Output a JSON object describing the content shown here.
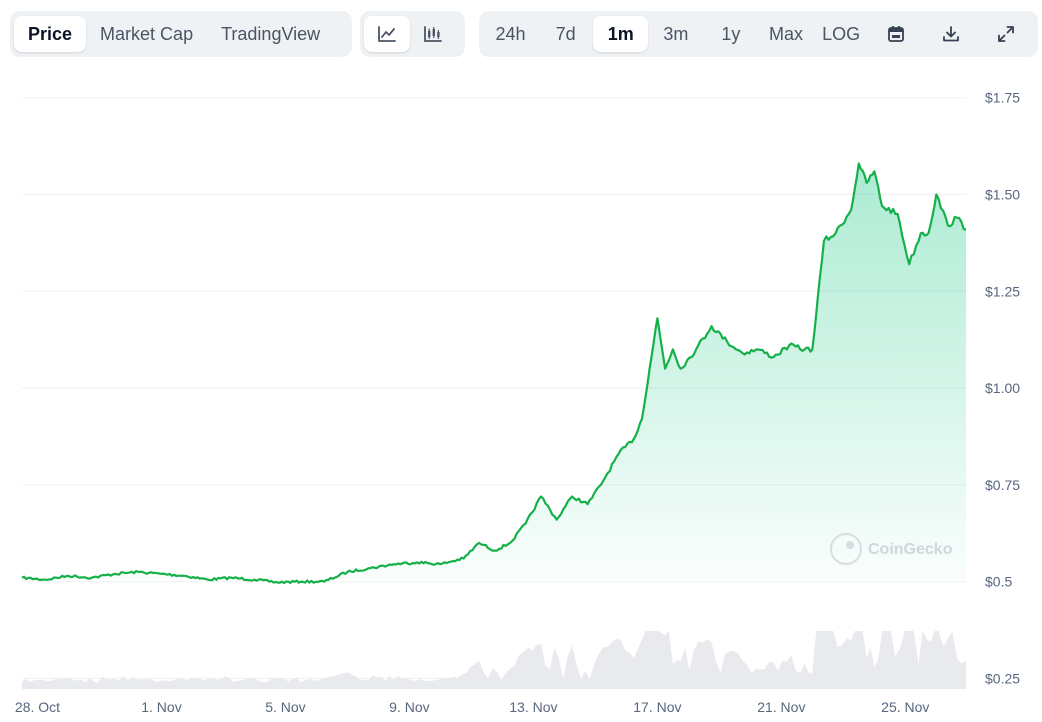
{
  "toolbar": {
    "view_tabs": [
      {
        "label": "Price",
        "active": true
      },
      {
        "label": "Market Cap",
        "active": false
      },
      {
        "label": "TradingView",
        "active": false
      }
    ],
    "chart_type_buttons": [
      {
        "icon": "line-chart-icon",
        "active": true
      },
      {
        "icon": "candlestick-chart-icon",
        "active": false
      }
    ],
    "range_buttons": [
      {
        "label": "24h",
        "active": false
      },
      {
        "label": "7d",
        "active": false
      },
      {
        "label": "1m",
        "active": true
      },
      {
        "label": "3m",
        "active": false
      },
      {
        "label": "1y",
        "active": false
      },
      {
        "label": "Max",
        "active": false
      },
      {
        "label": "LOG",
        "active": false
      }
    ],
    "action_icons": [
      "calendar-icon",
      "download-icon",
      "expand-icon"
    ]
  },
  "watermark": {
    "text": "CoinGecko",
    "icon": "gecko-logo-icon"
  },
  "colors": {
    "line": "#16b04a",
    "fill_top": "#16c784",
    "grid": "#eef0f3",
    "volume": "#e7e9ec"
  },
  "chart_data": {
    "type": "area",
    "title": "",
    "xlabel": "",
    "ylabel": "",
    "x_tick_labels": [
      "28. Oct",
      "1. Nov",
      "5. Nov",
      "9. Nov",
      "13. Nov",
      "17. Nov",
      "21. Nov",
      "25. Nov"
    ],
    "y_tick_labels": [
      "$1.75",
      "$1.50",
      "$1.25",
      "$1.00",
      "$0.75",
      "$0.5",
      "$0.25"
    ],
    "y_ticks": [
      1.75,
      1.5,
      1.25,
      1.0,
      0.75,
      0.5,
      0.25
    ],
    "ylim": [
      0.22,
      1.77
    ],
    "xlim": [
      "2024-10-27T12:00",
      "2024-11-26T23:00"
    ],
    "grid": true,
    "legend": "none",
    "series": [
      {
        "points": [
          [
            "2024-10-27T12:00",
            0.51
          ],
          [
            "2024-10-28T06:00",
            0.505
          ],
          [
            "2024-10-29T00:00",
            0.515
          ],
          [
            "2024-10-29T18:00",
            0.51
          ],
          [
            "2024-10-30T12:00",
            0.52
          ],
          [
            "2024-10-31T06:00",
            0.525
          ],
          [
            "2024-11-01T00:00",
            0.52
          ],
          [
            "2024-11-01T18:00",
            0.515
          ],
          [
            "2024-11-02T12:00",
            0.505
          ],
          [
            "2024-11-03T06:00",
            0.51
          ],
          [
            "2024-11-04T00:00",
            0.505
          ],
          [
            "2024-11-04T18:00",
            0.498
          ],
          [
            "2024-11-05T12:00",
            0.5
          ],
          [
            "2024-11-06T06:00",
            0.5
          ],
          [
            "2024-11-07T00:00",
            0.525
          ],
          [
            "2024-11-07T18:00",
            0.535
          ],
          [
            "2024-11-08T12:00",
            0.545
          ],
          [
            "2024-11-09T06:00",
            0.55
          ],
          [
            "2024-11-10T00:00",
            0.545
          ],
          [
            "2024-11-10T18:00",
            0.56
          ],
          [
            "2024-11-11T06:00",
            0.6
          ],
          [
            "2024-11-11T18:00",
            0.58
          ],
          [
            "2024-11-12T06:00",
            0.6
          ],
          [
            "2024-11-12T18:00",
            0.65
          ],
          [
            "2024-11-13T06:00",
            0.72
          ],
          [
            "2024-11-13T18:00",
            0.66
          ],
          [
            "2024-11-14T06:00",
            0.72
          ],
          [
            "2024-11-14T18:00",
            0.7
          ],
          [
            "2024-11-15T06:00",
            0.76
          ],
          [
            "2024-11-15T18:00",
            0.83
          ],
          [
            "2024-11-16T06:00",
            0.87
          ],
          [
            "2024-11-16T12:00",
            0.92
          ],
          [
            "2024-11-16T18:00",
            1.05
          ],
          [
            "2024-11-17T00:00",
            1.18
          ],
          [
            "2024-11-17T06:00",
            1.05
          ],
          [
            "2024-11-17T12:00",
            1.1
          ],
          [
            "2024-11-17T18:00",
            1.05
          ],
          [
            "2024-11-18T06:00",
            1.1
          ],
          [
            "2024-11-18T18:00",
            1.16
          ],
          [
            "2024-11-19T06:00",
            1.12
          ],
          [
            "2024-11-19T18:00",
            1.09
          ],
          [
            "2024-11-20T06:00",
            1.1
          ],
          [
            "2024-11-20T18:00",
            1.08
          ],
          [
            "2024-11-21T06:00",
            1.11
          ],
          [
            "2024-11-21T18:00",
            1.1
          ],
          [
            "2024-11-22T00:00",
            1.1
          ],
          [
            "2024-11-22T03:00",
            1.19
          ],
          [
            "2024-11-22T09:00",
            1.38
          ],
          [
            "2024-11-22T18:00",
            1.4
          ],
          [
            "2024-11-23T06:00",
            1.46
          ],
          [
            "2024-11-23T12:00",
            1.58
          ],
          [
            "2024-11-23T18:00",
            1.53
          ],
          [
            "2024-11-24T00:00",
            1.56
          ],
          [
            "2024-11-24T06:00",
            1.47
          ],
          [
            "2024-11-24T18:00",
            1.45
          ],
          [
            "2024-11-25T03:00",
            1.32
          ],
          [
            "2024-11-25T12:00",
            1.4
          ],
          [
            "2024-11-25T18:00",
            1.4
          ],
          [
            "2024-11-26T00:00",
            1.5
          ],
          [
            "2024-11-26T09:00",
            1.42
          ],
          [
            "2024-11-26T16:00",
            1.44
          ],
          [
            "2024-11-26T23:00",
            1.41
          ]
        ]
      }
    ]
  }
}
